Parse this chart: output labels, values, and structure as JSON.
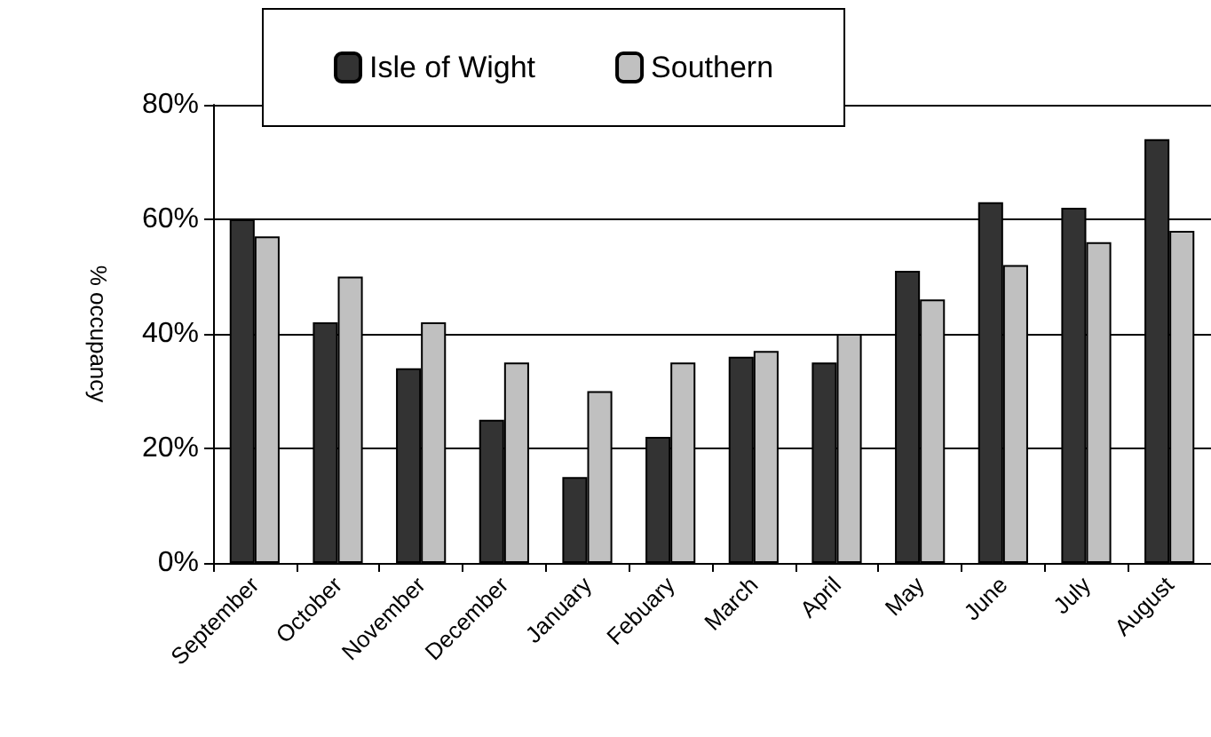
{
  "chart_data": {
    "type": "bar",
    "ylabel": "% occupancy",
    "categories": [
      "September",
      "October",
      "November",
      "December",
      "January",
      "Febuary",
      "March",
      "April",
      "May",
      "June",
      "July",
      "August"
    ],
    "series": [
      {
        "name": "Isle of Wight",
        "color": "#333333",
        "values": [
          60,
          42,
          34,
          25,
          15,
          22,
          36,
          35,
          51,
          63,
          62,
          74
        ]
      },
      {
        "name": "Southern",
        "color": "#c0c0c0",
        "values": [
          57,
          50,
          42,
          35,
          30,
          35,
          37,
          40,
          46,
          52,
          56,
          58
        ]
      }
    ],
    "ylim": [
      0,
      80
    ],
    "yticks": [
      {
        "value": 0,
        "label": "0%"
      },
      {
        "value": 20,
        "label": "20%"
      },
      {
        "value": 40,
        "label": "40%"
      },
      {
        "value": 60,
        "label": "60%"
      },
      {
        "value": 80,
        "label": "80%"
      }
    ],
    "grid": "y",
    "legend": "top"
  }
}
